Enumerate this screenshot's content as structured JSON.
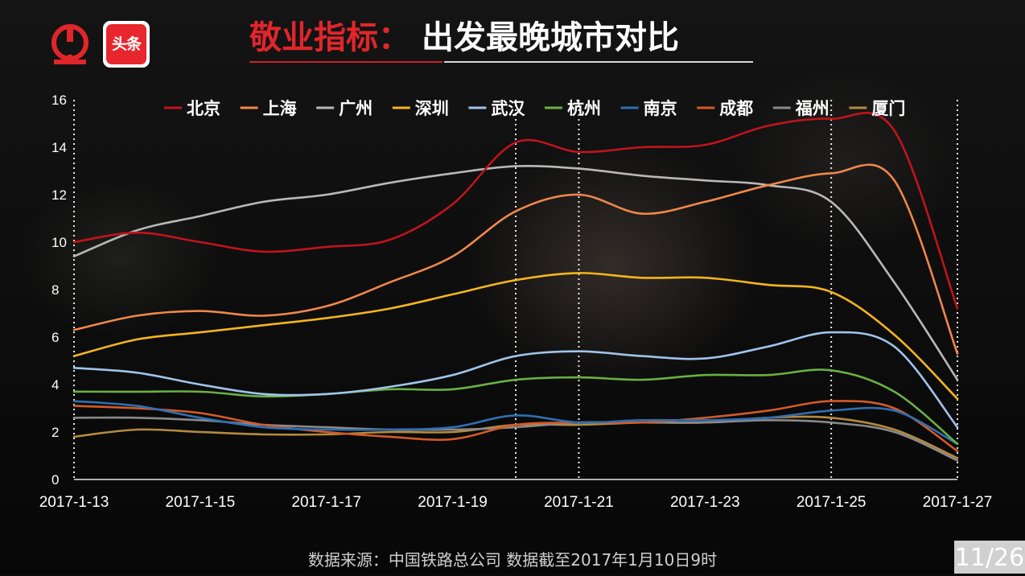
{
  "header": {
    "logo_rail": "railway-logo",
    "logo_tt": "头条",
    "title_prefix": "敬业指标：",
    "title_main": "出发最晚城市对比"
  },
  "footer": {
    "source": "数据来源：中国铁路总公司 数据截至2017年1月10日9时",
    "page": "11/26"
  },
  "colors": {
    "title_red": "#e0262b",
    "background": "#0b0b0b"
  },
  "chart_data": {
    "type": "line",
    "title": "",
    "xlabel": "",
    "ylabel": "",
    "ylim": [
      0,
      16
    ],
    "yticks": [
      0,
      2,
      4,
      6,
      8,
      10,
      12,
      14,
      16
    ],
    "x": [
      "2017-1-13",
      "2017-1-14",
      "2017-1-15",
      "2017-1-16",
      "2017-1-17",
      "2017-1-18",
      "2017-1-19",
      "2017-1-20",
      "2017-1-21",
      "2017-1-22",
      "2017-1-23",
      "2017-1-24",
      "2017-1-25",
      "2017-1-26",
      "2017-1-27"
    ],
    "xtick_labels": [
      "2017-1-13",
      "2017-1-15",
      "2017-1-17",
      "2017-1-19",
      "2017-1-21",
      "2017-1-23",
      "2017-1-25",
      "2017-1-27"
    ],
    "xtick_values": [
      "2017-1-13",
      "2017-1-15",
      "2017-1-17",
      "2017-1-19",
      "2017-1-21",
      "2017-1-23",
      "2017-1-25",
      "2017-1-27"
    ],
    "reference_lines": [
      "2017-1-13",
      "2017-1-20",
      "2017-1-21",
      "2017-1-25",
      "2017-1-27"
    ],
    "legend_position": "top",
    "grid": false,
    "series": [
      {
        "name": "北京",
        "color": "#c0141c",
        "values": [
          10.0,
          10.4,
          10.0,
          9.6,
          9.8,
          10.1,
          11.6,
          14.2,
          13.8,
          14.0,
          14.1,
          14.9,
          15.2,
          14.7,
          7.2
        ]
      },
      {
        "name": "上海",
        "color": "#f0874a",
        "values": [
          6.3,
          6.9,
          7.1,
          6.9,
          7.3,
          8.3,
          9.4,
          11.3,
          12.0,
          11.2,
          11.7,
          12.4,
          12.9,
          12.6,
          5.3
        ]
      },
      {
        "name": "广州",
        "color": "#b8b8b8",
        "values": [
          9.4,
          10.5,
          11.1,
          11.7,
          12.0,
          12.5,
          12.9,
          13.2,
          13.1,
          12.8,
          12.6,
          12.4,
          11.7,
          8.3,
          4.2
        ]
      },
      {
        "name": "深圳",
        "color": "#f5b51c",
        "values": [
          5.2,
          5.9,
          6.2,
          6.5,
          6.8,
          7.2,
          7.8,
          8.4,
          8.7,
          8.5,
          8.5,
          8.2,
          7.9,
          6.1,
          3.4
        ]
      },
      {
        "name": "武汉",
        "color": "#9fc4ea",
        "values": [
          4.7,
          4.5,
          4.0,
          3.6,
          3.6,
          3.9,
          4.4,
          5.2,
          5.4,
          5.2,
          5.1,
          5.6,
          6.2,
          5.6,
          2.2
        ]
      },
      {
        "name": "杭州",
        "color": "#6ab043",
        "values": [
          3.7,
          3.7,
          3.7,
          3.5,
          3.6,
          3.8,
          3.8,
          4.2,
          4.3,
          4.2,
          4.4,
          4.4,
          4.6,
          3.7,
          1.5
        ]
      },
      {
        "name": "南京",
        "color": "#2f6fb3",
        "values": [
          3.3,
          3.1,
          2.6,
          2.2,
          2.1,
          2.1,
          2.2,
          2.7,
          2.4,
          2.5,
          2.5,
          2.6,
          2.9,
          2.9,
          1.5
        ]
      },
      {
        "name": "成都",
        "color": "#d35a28",
        "values": [
          3.1,
          3.0,
          2.8,
          2.3,
          2.0,
          1.8,
          1.7,
          2.3,
          2.4,
          2.4,
          2.6,
          2.9,
          3.3,
          3.0,
          1.2
        ]
      },
      {
        "name": "福州",
        "color": "#8a8a8a",
        "values": [
          2.6,
          2.6,
          2.5,
          2.3,
          2.2,
          2.1,
          2.1,
          2.2,
          2.4,
          2.4,
          2.4,
          2.5,
          2.4,
          2.0,
          0.8
        ]
      },
      {
        "name": "厦门",
        "color": "#b58a3e",
        "values": [
          1.8,
          2.1,
          2.0,
          1.9,
          1.9,
          2.0,
          2.0,
          2.3,
          2.3,
          2.4,
          2.4,
          2.6,
          2.6,
          2.1,
          0.9
        ]
      }
    ]
  }
}
